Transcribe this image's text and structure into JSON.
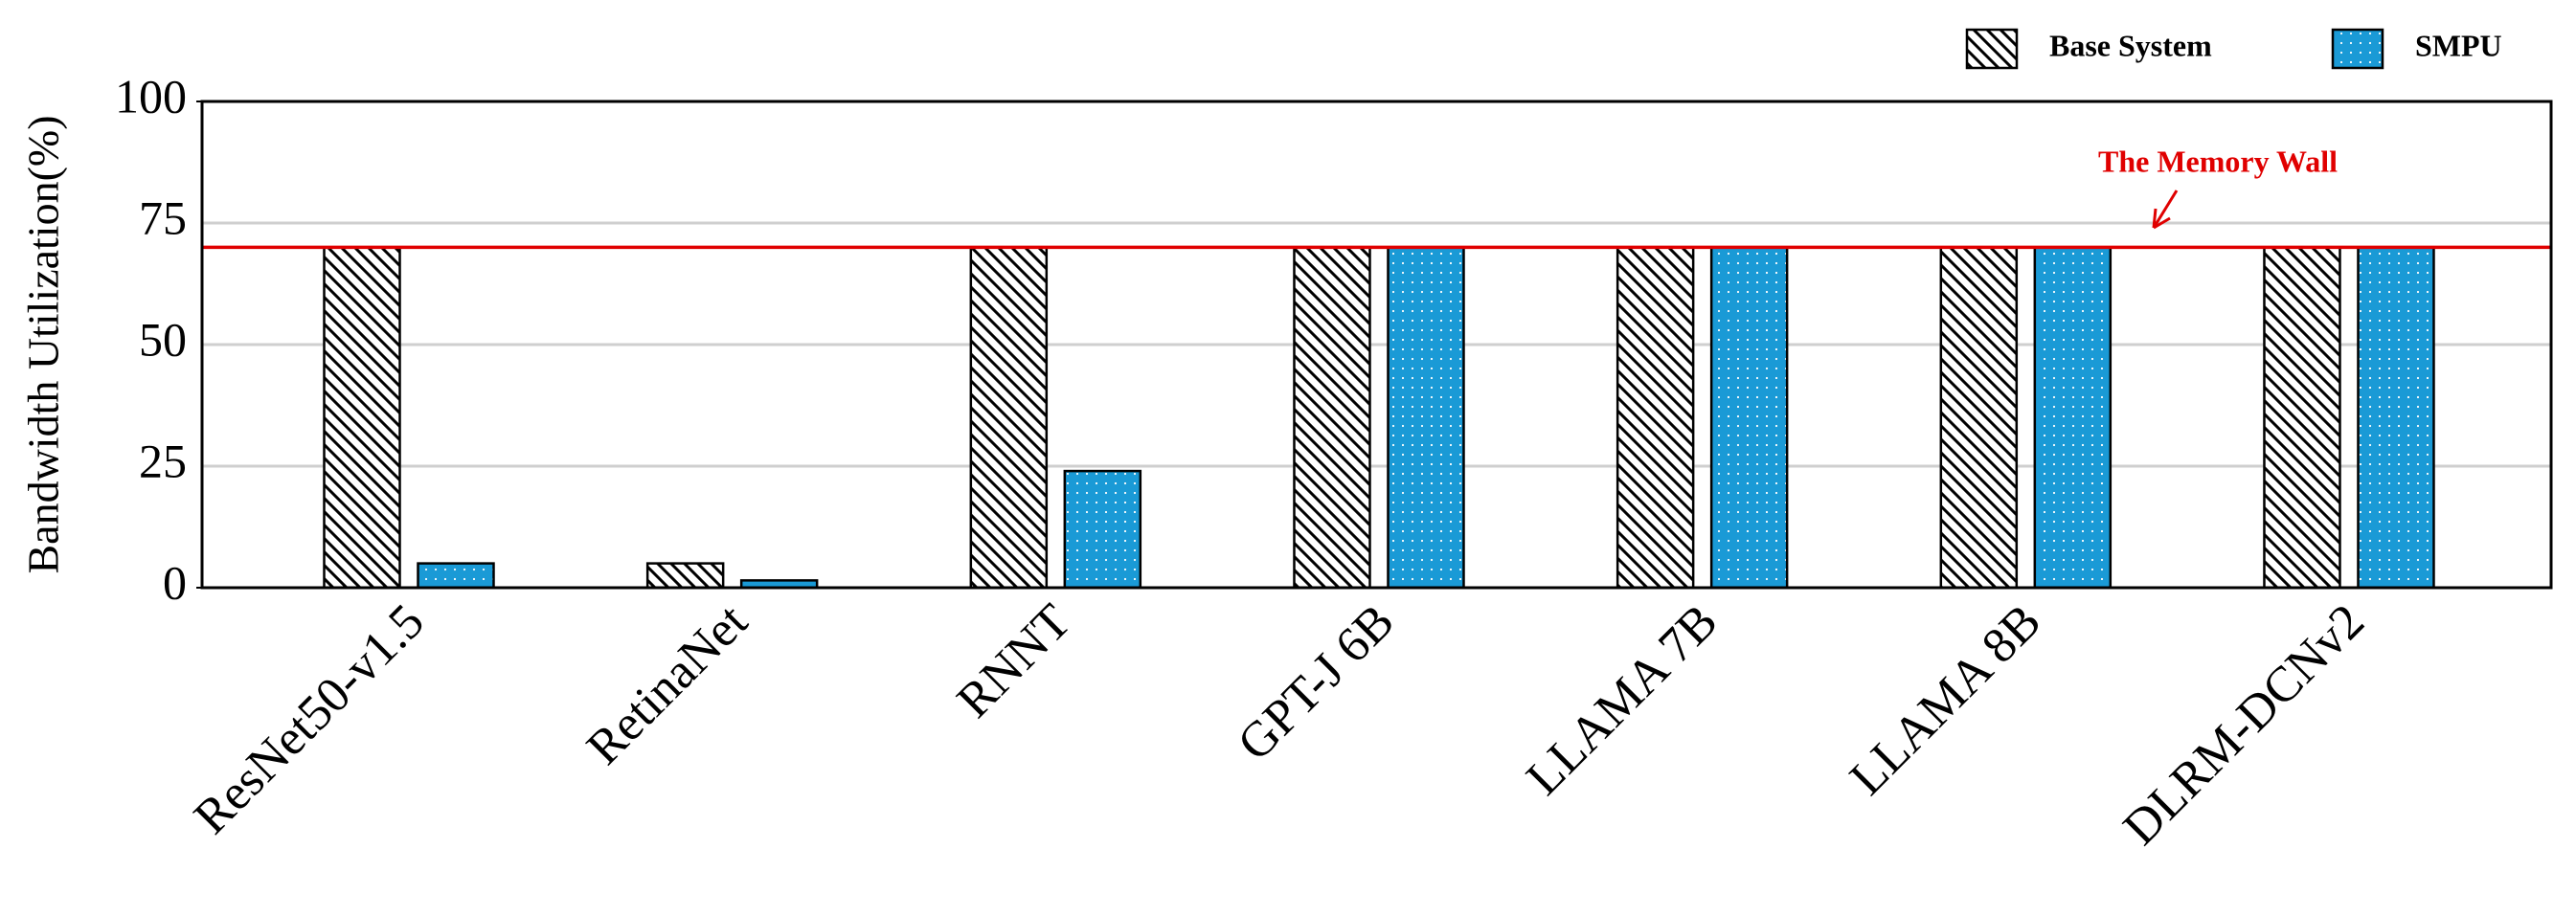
{
  "chart_data": {
    "type": "bar",
    "y_label": "Bandwidth Utilization(%)",
    "categories": [
      "ResNet50-v1.5",
      "RetinaNet",
      "RNNT",
      "GPT-J 6B",
      "LLAMA 7B",
      "LLAMA 8B",
      "DLRM-DCNv2"
    ],
    "series": [
      {
        "name": "Base System",
        "color": "#000000",
        "pattern": "hatch",
        "values": [
          70,
          5,
          70,
          70,
          70,
          70,
          70
        ]
      },
      {
        "name": "SMPU",
        "color": "#1a9ad6",
        "pattern": "dots",
        "values": [
          5,
          1.5,
          24,
          70,
          70,
          70,
          70
        ]
      }
    ],
    "ylim": [
      0,
      100
    ],
    "yticks": [
      0,
      25,
      50,
      75,
      100
    ],
    "grid": true,
    "legend": "top-right",
    "reference_line": {
      "value": 70,
      "label": "The Memory Wall",
      "color": "#e00000"
    }
  }
}
